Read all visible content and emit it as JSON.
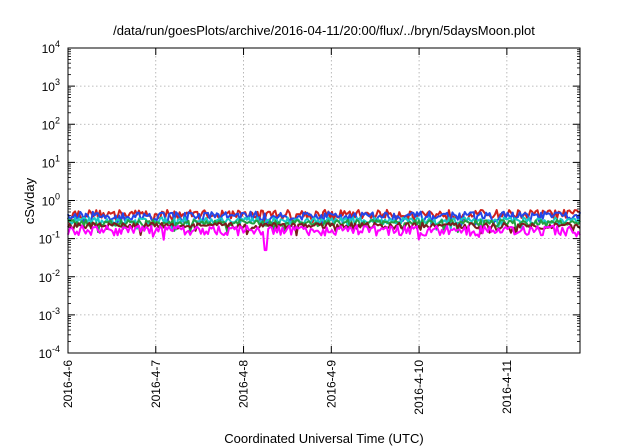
{
  "chart_data": {
    "type": "line",
    "title": "/data/run/goesPlots/archive/2016-04-11/20:00/flux/../bryn/5daysMoon.plot",
    "xlabel": "Coordinated Universal Time (UTC)",
    "ylabel": "cSv/day",
    "yscale": "log",
    "ylim": [
      0.0001,
      10000
    ],
    "y_ticks": [
      {
        "base": "10",
        "exp": "-4"
      },
      {
        "base": "10",
        "exp": "-3"
      },
      {
        "base": "10",
        "exp": "-2"
      },
      {
        "base": "10",
        "exp": "-1"
      },
      {
        "base": "10",
        "exp": "0"
      },
      {
        "base": "10",
        "exp": "1"
      },
      {
        "base": "10",
        "exp": "2"
      },
      {
        "base": "10",
        "exp": "3"
      },
      {
        "base": "10",
        "exp": "4"
      }
    ],
    "x_ticks": [
      "2016-4-6",
      "2016-4-7",
      "2016-4-8",
      "2016-4-9",
      "2016-4-10",
      "2016-4-11"
    ],
    "xlim": [
      "2016-04-06 00:00",
      "2016-04-11 20:00"
    ],
    "grid": true,
    "series": [
      {
        "color": "#d0211b",
        "base": 0.45,
        "spread": 0.12
      },
      {
        "color": "#2446e8",
        "base": 0.4,
        "spread": 0.11
      },
      {
        "color": "#16c8c8",
        "base": 0.3,
        "spread": 0.06
      },
      {
        "color": "#22a040",
        "base": 0.26,
        "spread": 0.05
      },
      {
        "color": "#7a1d1d",
        "base": 0.22,
        "spread": 0.04
      },
      {
        "color": "#ff00ff",
        "base": 0.17,
        "spread": 0.05
      }
    ],
    "features": {
      "magenta_dip": {
        "date": "2016-04-08 06:00",
        "value": 0.05
      }
    }
  }
}
